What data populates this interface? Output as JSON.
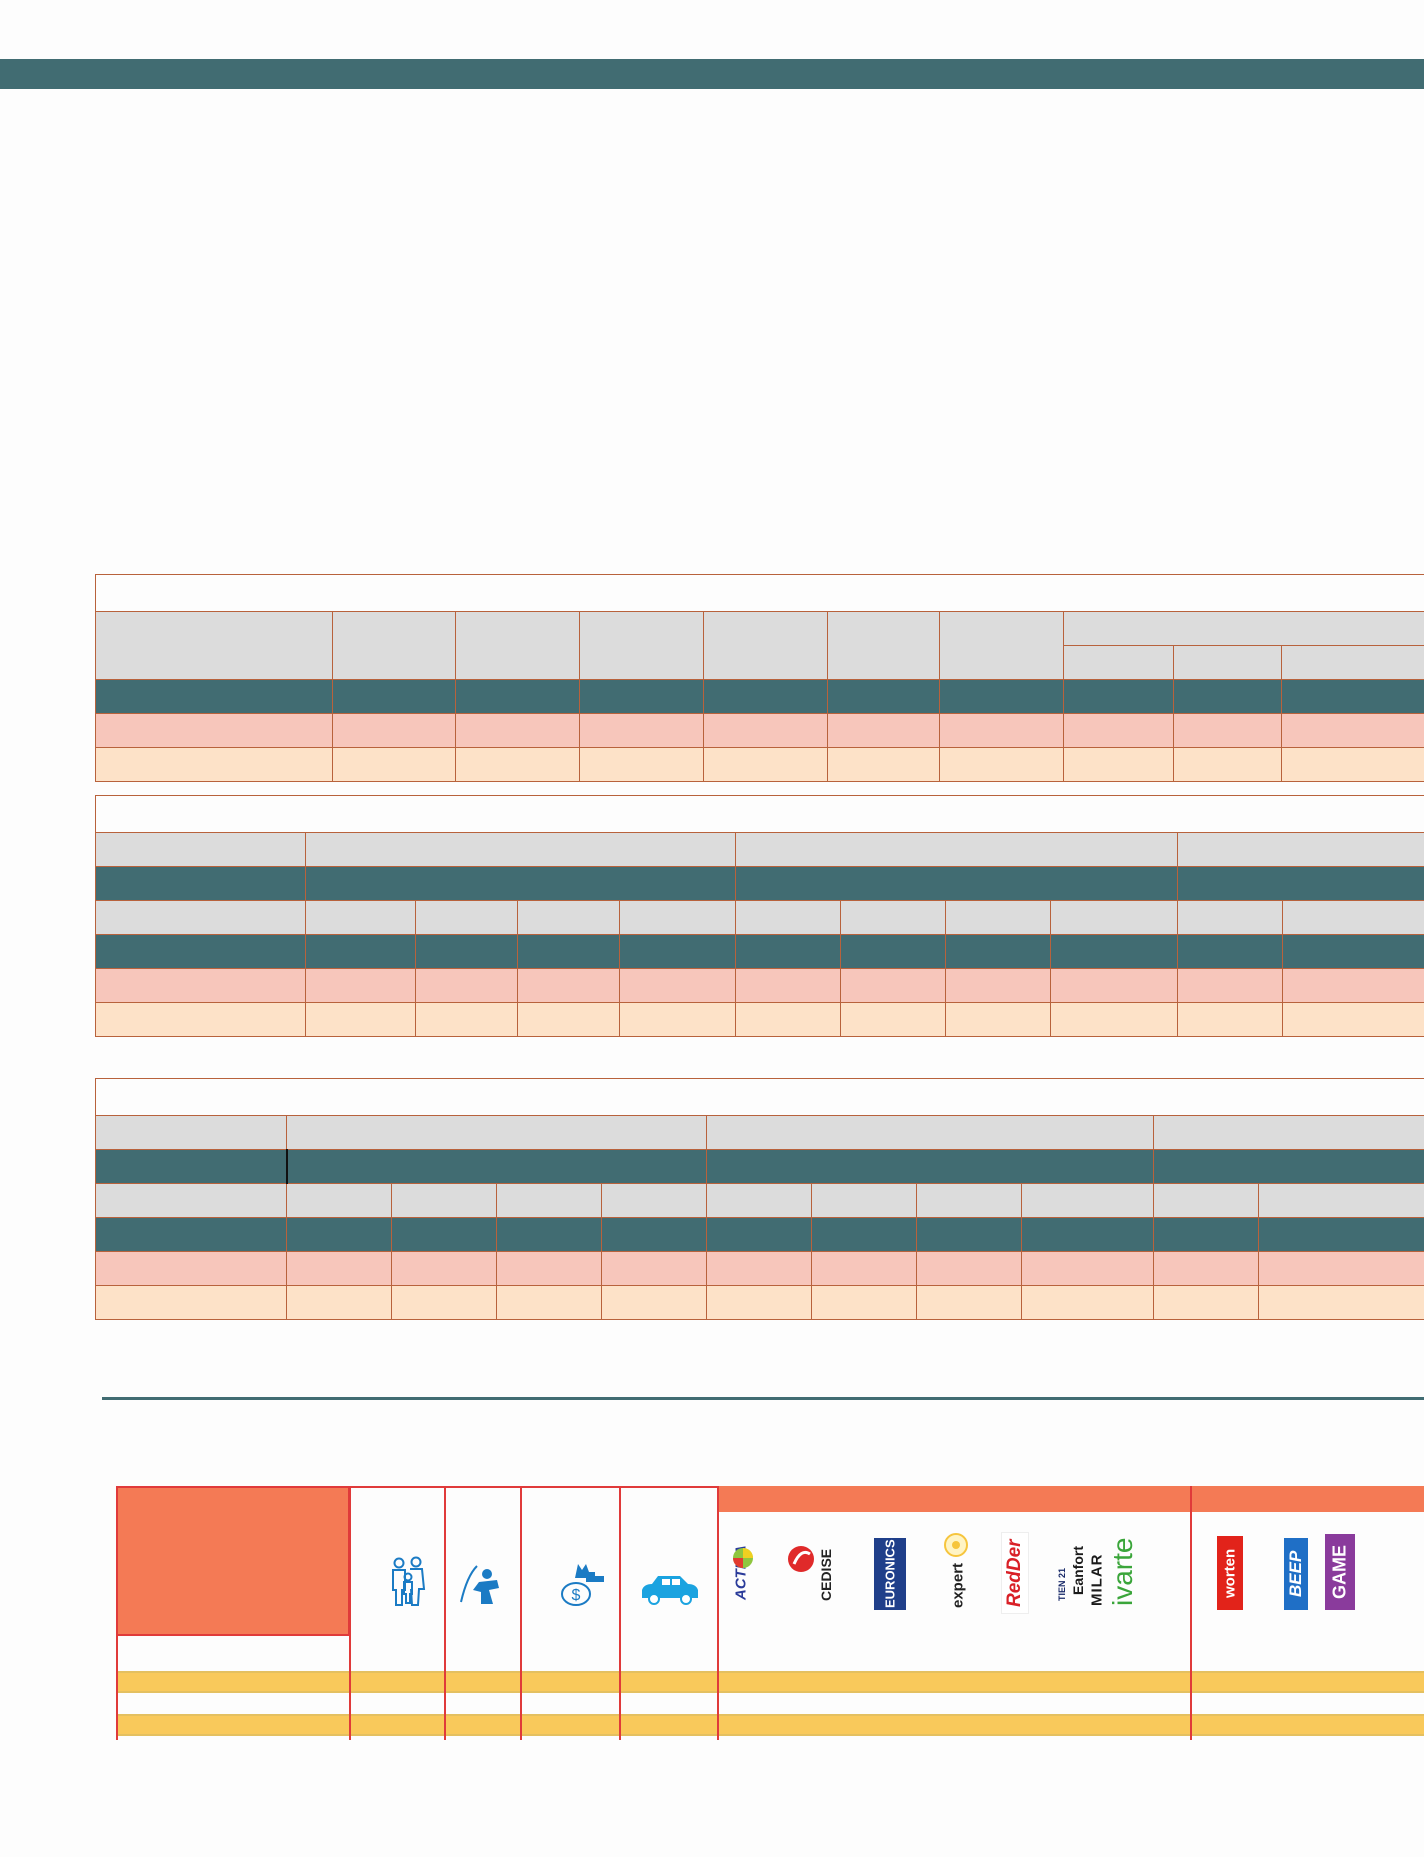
{
  "colors": {
    "teal": "#416c72",
    "border": "#b8623c",
    "gray": "#dcdcdc",
    "pink": "#f7c6bb",
    "peach": "#fde2c8",
    "orange": "#f47a55",
    "yellow": "#f9c95b"
  },
  "icons": [
    "family-icon",
    "person-writing-icon",
    "money-bag-icon",
    "car-icon"
  ],
  "logos": {
    "activa": "ACTIVA",
    "cedise": "CEDISE",
    "euronics": "EURONICS",
    "expert": "expert",
    "redder": "RedDer",
    "tien21": "TIEN 21",
    "tien21_sub": "Eanfort",
    "milar": "MILAR",
    "ivarte": "ivarte",
    "worten": "worten",
    "beep": "BEEP",
    "game": "GAME"
  }
}
